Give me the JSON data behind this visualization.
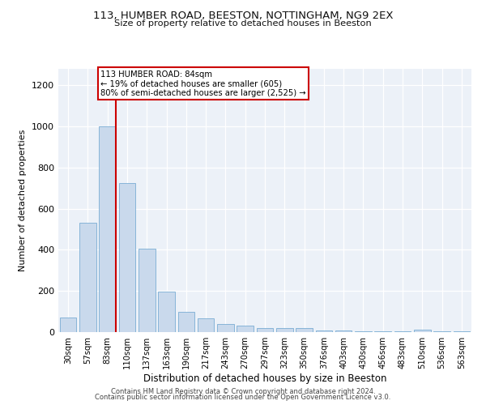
{
  "title_line1": "113, HUMBER ROAD, BEESTON, NOTTINGHAM, NG9 2EX",
  "title_line2": "Size of property relative to detached houses in Beeston",
  "xlabel": "Distribution of detached houses by size in Beeston",
  "ylabel": "Number of detached properties",
  "bar_color": "#c9d9ec",
  "bar_edge_color": "#7aadd4",
  "categories": [
    "30sqm",
    "57sqm",
    "83sqm",
    "110sqm",
    "137sqm",
    "163sqm",
    "190sqm",
    "217sqm",
    "243sqm",
    "270sqm",
    "297sqm",
    "323sqm",
    "350sqm",
    "376sqm",
    "403sqm",
    "430sqm",
    "456sqm",
    "483sqm",
    "510sqm",
    "536sqm",
    "563sqm"
  ],
  "values": [
    70,
    530,
    1000,
    725,
    405,
    198,
    100,
    65,
    38,
    32,
    18,
    18,
    18,
    8,
    6,
    5,
    5,
    5,
    10,
    5,
    5
  ],
  "ylim": [
    0,
    1280
  ],
  "yticks": [
    0,
    200,
    400,
    600,
    800,
    1000,
    1200
  ],
  "marker_bar_index": 2,
  "marker_label_line1": "113 HUMBER ROAD: 84sqm",
  "marker_label_line2": "← 19% of detached houses are smaller (605)",
  "marker_label_line3": "80% of semi-detached houses are larger (2,525) →",
  "annotation_color": "#cc0000",
  "background_color": "#ecf1f8",
  "footer_line1": "Contains HM Land Registry data © Crown copyright and database right 2024.",
  "footer_line2": "Contains public sector information licensed under the Open Government Licence v3.0."
}
